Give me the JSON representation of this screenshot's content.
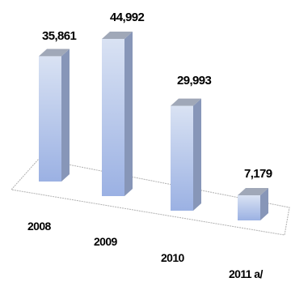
{
  "chart_data": {
    "type": "bar",
    "categories": [
      "2008",
      "2009",
      "2010",
      "2011 a/"
    ],
    "values": [
      35861,
      44992,
      29993,
      7179
    ],
    "value_labels": [
      "35,861",
      "44,992",
      "29,993",
      "7,179"
    ],
    "title": "",
    "xlabel": "",
    "ylabel": "",
    "ylim": [
      0,
      45000
    ],
    "grid": false,
    "legend": "none",
    "style": "3d-column",
    "colors": {
      "front_top": "#d9e2f3",
      "front_bottom": "#9bb1e3",
      "side": "#8796b8",
      "top": "#a0a8b8",
      "floor_border": "#b0b0b0"
    }
  }
}
